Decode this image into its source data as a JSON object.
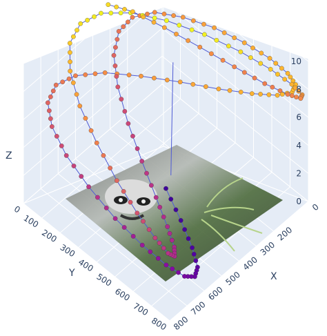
{
  "chart_data": {
    "type": "scatter3d",
    "title": "",
    "axes": {
      "x": {
        "title": "X",
        "ticks": [
          0,
          200,
          300,
          400,
          500,
          600,
          700,
          800
        ],
        "range": [
          0,
          800
        ]
      },
      "y": {
        "title": "Y",
        "ticks": [
          0,
          100,
          200,
          300,
          400,
          500,
          600,
          700,
          800
        ],
        "range": [
          0,
          800
        ]
      },
      "z": {
        "title": "Z",
        "ticks": [
          0,
          2,
          4,
          6,
          8,
          10
        ],
        "range": [
          0,
          10
        ]
      }
    },
    "surface_image": "raccoon-image",
    "colorscale": "plasma",
    "marker": "circle",
    "line_color": "#4f5bd5",
    "background_color": "#e5ecf6",
    "grid": true,
    "series": [
      {
        "mode": "lines+markers",
        "x": [
          400,
          474,
          547,
          614,
          674,
          721,
          757,
          779,
          786,
          779,
          757,
          721,
          674,
          614,
          547,
          474,
          400,
          326,
          253,
          186,
          126,
          79,
          43,
          21,
          14,
          21,
          43,
          79,
          126,
          186,
          253,
          326,
          400,
          474,
          547,
          614,
          674,
          721,
          757,
          779,
          786,
          779,
          757,
          721,
          674,
          614,
          547,
          474,
          400,
          326,
          253,
          186,
          126,
          79,
          43,
          21,
          14,
          21,
          43,
          79,
          126,
          186,
          253,
          326
        ],
        "y": [
          400,
          552,
          683,
          776,
          818,
          806,
          740,
          630,
          489,
          337,
          194,
          81,
          14,
          2,
          45,
          137,
          264,
          408,
          549,
          668,
          750,
          786,
          771,
          707,
          602,
          470,
          326,
          189,
          79,
          14,
          3,
          45,
          137,
          264,
          408,
          549,
          668,
          750,
          786,
          771,
          707,
          602,
          470,
          326,
          189,
          79,
          14,
          3,
          45,
          137,
          264,
          408,
          549,
          668,
          750,
          786,
          771,
          707,
          602,
          470,
          326,
          189,
          79,
          14
        ],
        "z": [
          1.0,
          1.1,
          1.3,
          1.6,
          2.0,
          2.4,
          2.9,
          3.4,
          3.9,
          4.5,
          5.0,
          5.5,
          6.0,
          6.5,
          6.9,
          7.3,
          7.6,
          7.9,
          8.1,
          8.3,
          8.4,
          8.5,
          8.5,
          8.4,
          8.3,
          8.1,
          7.9,
          7.6,
          7.3,
          6.9,
          6.5,
          6.0,
          5.5,
          5.0,
          4.6,
          4.2,
          4.0,
          3.9,
          4.0,
          4.3,
          4.8,
          5.4,
          6.1,
          6.9,
          7.6,
          8.3,
          8.9,
          9.4,
          9.8,
          10.0,
          10.0,
          9.8,
          9.4,
          8.9,
          8.3,
          7.7,
          7.2,
          6.9,
          6.8,
          7.0,
          7.4,
          8.0,
          8.7,
          9.3
        ]
      },
      {
        "mode": "lines",
        "x": [
          350,
          380
        ],
        "y": [
          380,
          420
        ],
        "z": [
          1.2,
          10.0
        ]
      }
    ]
  }
}
